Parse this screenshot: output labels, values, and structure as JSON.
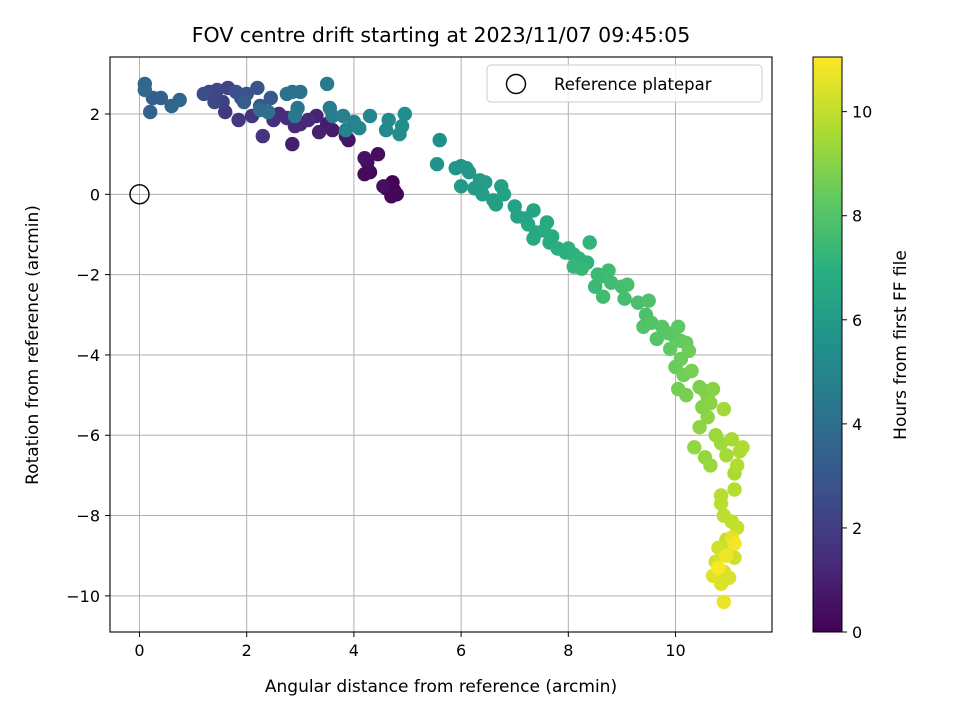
{
  "chart_data": {
    "type": "scatter",
    "title": "FOV centre drift starting at 2023/11/07 09:45:05",
    "xlabel": "Angular distance from reference (arcmin)",
    "ylabel": "Rotation from reference (arcmin)",
    "xlim": [
      -0.55,
      11.8
    ],
    "ylim": [
      -10.9,
      3.42
    ],
    "xticks": [
      0,
      2,
      4,
      6,
      8,
      10
    ],
    "yticks": [
      -10,
      -8,
      -6,
      -4,
      -2,
      0,
      2
    ],
    "xtick_labels": [
      "0",
      "2",
      "4",
      "6",
      "8",
      "10"
    ],
    "ytick_labels": [
      "−10",
      "−8",
      "−6",
      "−4",
      "−2",
      "0",
      "2"
    ],
    "grid": true,
    "legend": {
      "position": "top-right",
      "entries": [
        "Reference platepar"
      ]
    },
    "reference_point": {
      "x": 0,
      "y": 0,
      "label": "Reference platepar"
    },
    "colorbar": {
      "label": "Hours from first FF file",
      "range": [
        0,
        11.05
      ],
      "ticks": [
        0,
        2,
        4,
        6,
        8,
        10
      ],
      "tick_labels": [
        "0",
        "2",
        "4",
        "6",
        "8",
        "10"
      ],
      "colormap": [
        "#440154",
        "#472d7b",
        "#3b528b",
        "#2c728e",
        "#21918c",
        "#28ae80",
        "#5ec962",
        "#addc30",
        "#fde725"
      ]
    },
    "points": [
      [
        4.75,
        0.1,
        0.0
      ],
      [
        4.72,
        0.3,
        0.05
      ],
      [
        4.6,
        0.15,
        0.1
      ],
      [
        4.8,
        0.0,
        0.15
      ],
      [
        4.7,
        -0.05,
        0.2
      ],
      [
        4.3,
        0.55,
        0.25
      ],
      [
        4.2,
        0.5,
        0.3
      ],
      [
        4.25,
        0.8,
        0.35
      ],
      [
        4.45,
        1.0,
        0.4
      ],
      [
        4.55,
        0.2,
        0.45
      ],
      [
        4.2,
        0.9,
        0.5
      ],
      [
        3.9,
        1.35,
        0.6
      ],
      [
        3.85,
        1.45,
        0.7
      ],
      [
        3.6,
        1.6,
        0.8
      ],
      [
        3.5,
        1.75,
        0.85
      ],
      [
        2.85,
        1.25,
        0.9
      ],
      [
        3.35,
        1.55,
        1.0
      ],
      [
        3.3,
        1.95,
        1.1
      ],
      [
        3.0,
        1.75,
        1.2
      ],
      [
        2.9,
        1.7,
        1.25
      ],
      [
        3.15,
        1.85,
        1.3
      ],
      [
        2.75,
        1.9,
        1.35
      ],
      [
        2.6,
        2.0,
        1.4
      ],
      [
        2.5,
        1.85,
        1.5
      ],
      [
        2.3,
        1.45,
        1.55
      ],
      [
        2.1,
        1.95,
        1.6
      ],
      [
        1.85,
        1.85,
        1.7
      ],
      [
        1.6,
        2.05,
        1.8
      ],
      [
        2.4,
        2.05,
        1.9
      ],
      [
        1.4,
        2.45,
        2.0
      ],
      [
        1.55,
        2.3,
        2.1
      ],
      [
        1.65,
        2.65,
        2.2
      ],
      [
        1.3,
        2.55,
        2.25
      ],
      [
        1.45,
        2.6,
        2.35
      ],
      [
        1.4,
        2.3,
        2.4
      ],
      [
        1.9,
        2.4,
        2.5
      ],
      [
        1.2,
        2.5,
        2.6
      ],
      [
        1.8,
        2.55,
        2.7
      ],
      [
        2.0,
        2.5,
        2.8
      ],
      [
        2.2,
        2.65,
        2.9
      ],
      [
        2.45,
        2.4,
        3.0
      ],
      [
        2.25,
        2.2,
        3.1
      ],
      [
        1.95,
        2.3,
        3.2
      ],
      [
        0.25,
        2.4,
        3.3
      ],
      [
        0.4,
        2.4,
        3.4
      ],
      [
        0.2,
        2.05,
        3.5
      ],
      [
        0.6,
        2.2,
        3.6
      ],
      [
        0.75,
        2.35,
        3.65
      ],
      [
        0.1,
        2.75,
        3.7
      ],
      [
        0.1,
        2.6,
        3.75
      ],
      [
        2.25,
        2.1,
        3.9
      ],
      [
        2.4,
        2.05,
        4.0
      ],
      [
        2.85,
        2.55,
        4.1
      ],
      [
        2.75,
        2.5,
        4.15
      ],
      [
        3.0,
        2.55,
        4.2
      ],
      [
        2.95,
        2.15,
        4.3
      ],
      [
        2.9,
        1.95,
        4.4
      ],
      [
        3.5,
        2.75,
        4.5
      ],
      [
        3.55,
        2.15,
        4.6
      ],
      [
        3.6,
        1.95,
        4.7
      ],
      [
        3.8,
        1.95,
        4.8
      ],
      [
        3.85,
        1.6,
        4.85
      ],
      [
        4.0,
        1.8,
        4.9
      ],
      [
        4.1,
        1.65,
        5.0
      ],
      [
        4.3,
        1.95,
        5.1
      ],
      [
        4.6,
        1.6,
        5.15
      ],
      [
        4.65,
        1.85,
        5.2
      ],
      [
        4.85,
        1.5,
        5.3
      ],
      [
        4.95,
        2.0,
        5.35
      ],
      [
        4.9,
        1.7,
        5.4
      ],
      [
        5.6,
        1.35,
        5.5
      ],
      [
        5.55,
        0.75,
        5.6
      ],
      [
        5.9,
        0.65,
        5.7
      ],
      [
        6.0,
        0.7,
        5.75
      ],
      [
        6.1,
        0.65,
        5.8
      ],
      [
        6.15,
        0.55,
        5.85
      ],
      [
        6.0,
        0.2,
        5.9
      ],
      [
        6.25,
        0.15,
        5.95
      ],
      [
        6.35,
        0.35,
        6.0
      ],
      [
        6.45,
        0.3,
        6.05
      ],
      [
        6.4,
        0.0,
        6.1
      ],
      [
        6.6,
        -0.15,
        6.15
      ],
      [
        6.65,
        -0.25,
        6.2
      ],
      [
        6.75,
        0.2,
        6.25
      ],
      [
        6.8,
        0.0,
        6.3
      ],
      [
        7.0,
        -0.3,
        6.35
      ],
      [
        7.05,
        -0.55,
        6.4
      ],
      [
        7.2,
        -0.6,
        6.45
      ],
      [
        7.35,
        -0.4,
        6.5
      ],
      [
        7.25,
        -0.75,
        6.55
      ],
      [
        7.4,
        -0.95,
        6.6
      ],
      [
        7.35,
        -1.1,
        6.65
      ],
      [
        7.6,
        -0.7,
        6.7
      ],
      [
        7.55,
        -0.9,
        6.75
      ],
      [
        7.7,
        -1.05,
        6.8
      ],
      [
        7.65,
        -1.2,
        6.85
      ],
      [
        7.8,
        -1.35,
        6.9
      ],
      [
        7.95,
        -1.45,
        6.95
      ],
      [
        8.0,
        -1.35,
        7.0
      ],
      [
        8.1,
        -1.5,
        7.05
      ],
      [
        8.2,
        -1.6,
        7.1
      ],
      [
        8.35,
        -1.7,
        7.15
      ],
      [
        8.4,
        -1.2,
        7.2
      ],
      [
        8.1,
        -1.8,
        7.25
      ],
      [
        8.25,
        -1.85,
        7.3
      ],
      [
        8.55,
        -2.0,
        7.35
      ],
      [
        8.5,
        -2.3,
        7.4
      ],
      [
        8.6,
        -2.05,
        7.45
      ],
      [
        8.75,
        -1.9,
        7.5
      ],
      [
        8.65,
        -2.55,
        7.55
      ],
      [
        8.8,
        -2.2,
        7.6
      ],
      [
        9.0,
        -2.3,
        7.65
      ],
      [
        9.05,
        -2.6,
        7.7
      ],
      [
        9.1,
        -2.25,
        7.75
      ],
      [
        9.3,
        -2.7,
        7.8
      ],
      [
        9.45,
        -3.0,
        7.85
      ],
      [
        9.5,
        -2.65,
        7.9
      ],
      [
        9.4,
        -3.3,
        7.95
      ],
      [
        9.55,
        -3.2,
        8.0
      ],
      [
        9.65,
        -3.6,
        8.05
      ],
      [
        9.75,
        -3.3,
        8.1
      ],
      [
        9.85,
        -3.45,
        8.15
      ],
      [
        9.95,
        -3.5,
        8.2
      ],
      [
        10.05,
        -3.3,
        8.25
      ],
      [
        9.9,
        -3.85,
        8.3
      ],
      [
        10.1,
        -3.65,
        8.35
      ],
      [
        10.2,
        -3.7,
        8.4
      ],
      [
        10.0,
        -4.3,
        8.45
      ],
      [
        10.1,
        -4.1,
        8.5
      ],
      [
        10.25,
        -3.9,
        8.55
      ],
      [
        10.15,
        -4.5,
        8.6
      ],
      [
        10.05,
        -4.85,
        8.65
      ],
      [
        10.2,
        -5.0,
        8.7
      ],
      [
        10.3,
        -4.4,
        8.75
      ],
      [
        10.45,
        -4.8,
        8.8
      ],
      [
        10.55,
        -4.9,
        8.85
      ],
      [
        10.6,
        -5.05,
        8.9
      ],
      [
        10.5,
        -5.3,
        8.95
      ],
      [
        10.7,
        -4.85,
        9.0
      ],
      [
        10.65,
        -5.2,
        9.05
      ],
      [
        10.6,
        -5.55,
        9.1
      ],
      [
        10.45,
        -5.8,
        9.15
      ],
      [
        10.35,
        -6.3,
        9.2
      ],
      [
        10.55,
        -6.55,
        9.25
      ],
      [
        10.65,
        -6.75,
        9.3
      ],
      [
        10.75,
        -6.0,
        9.35
      ],
      [
        10.85,
        -6.2,
        9.4
      ],
      [
        10.9,
        -5.35,
        9.45
      ],
      [
        10.95,
        -6.5,
        9.5
      ],
      [
        11.05,
        -6.1,
        9.55
      ],
      [
        11.1,
        -6.95,
        9.6
      ],
      [
        11.2,
        -6.4,
        9.65
      ],
      [
        11.25,
        -6.3,
        9.7
      ],
      [
        11.15,
        -6.75,
        9.75
      ],
      [
        11.1,
        -7.35,
        9.8
      ],
      [
        10.85,
        -7.5,
        9.85
      ],
      [
        10.85,
        -7.7,
        9.9
      ],
      [
        10.9,
        -8.0,
        9.95
      ],
      [
        11.05,
        -8.15,
        10.0
      ],
      [
        11.15,
        -8.3,
        10.05
      ],
      [
        10.95,
        -8.6,
        10.1
      ],
      [
        11.0,
        -8.9,
        10.15
      ],
      [
        11.1,
        -9.05,
        10.2
      ],
      [
        10.8,
        -8.8,
        10.25
      ],
      [
        10.75,
        -9.15,
        10.3
      ],
      [
        10.9,
        -9.4,
        10.35
      ],
      [
        11.0,
        -9.55,
        10.4
      ],
      [
        10.85,
        -9.7,
        10.45
      ],
      [
        10.7,
        -9.5,
        10.5
      ],
      [
        11.05,
        -8.55,
        10.6
      ],
      [
        10.9,
        -10.15,
        10.7
      ],
      [
        10.95,
        -9.0,
        10.8
      ],
      [
        11.1,
        -8.7,
        10.9
      ],
      [
        10.8,
        -9.3,
        11.0
      ]
    ]
  }
}
